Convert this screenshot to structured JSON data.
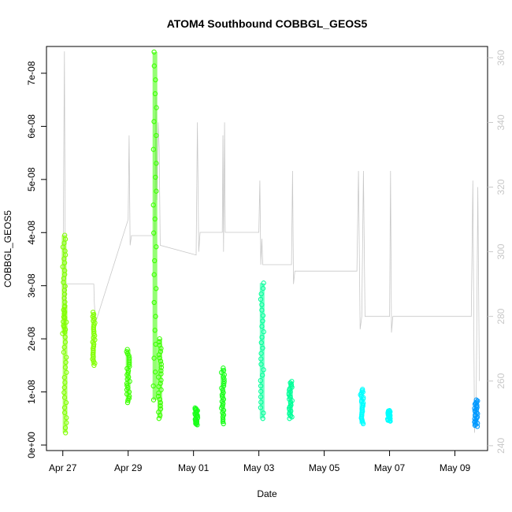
{
  "chart_data": {
    "type": "scatter",
    "title": "ATOM4 Southbound COBBGL_GEOS5",
    "xlabel": "Date",
    "ylabel": "COBBGL_GEOS5",
    "x_tick_labels": [
      "Apr 27",
      "Apr 29",
      "May 01",
      "May 03",
      "May 05",
      "May 07",
      "May 09"
    ],
    "x_tick_days": [
      0,
      2,
      4,
      6,
      8,
      10,
      12
    ],
    "xlim_days": [
      -0.5,
      13.0
    ],
    "ylim": [
      0,
      7.4e-08
    ],
    "y_ticks": [
      0,
      1e-08,
      2e-08,
      3e-08,
      4e-08,
      5e-08,
      6e-08,
      7e-08
    ],
    "y_tick_labels": [
      "0e+00",
      "1e-08",
      "2e-08",
      "3e-08",
      "4e-08",
      "5e-08",
      "6e-08",
      "7e-08"
    ],
    "y2_ticks": [
      240,
      260,
      280,
      300,
      320,
      340,
      360
    ],
    "y2_tick_labels": [
      "240",
      "260",
      "280",
      "300",
      "320",
      "340",
      "360"
    ],
    "y2lim": [
      238.5,
      363.5
    ],
    "y2_color": "#c8c8c8",
    "grid": false,
    "series": [
      {
        "color": "#80ff00",
        "clusters": [
          {
            "day": 0.04,
            "min": 2.1e-08,
            "max": 3.95e-08
          },
          {
            "day": 0.07,
            "min": 2.3e-09,
            "max": 2.6e-08
          },
          {
            "day": 0.94,
            "min": 1.5e-08,
            "max": 2.5e-08
          }
        ]
      },
      {
        "color": "#3cff00",
        "clusters": [
          {
            "day": 2.0,
            "min": 8e-09,
            "max": 1.8e-08
          },
          {
            "day": 2.82,
            "min": 8.5e-09,
            "max": 7.4e-08
          },
          {
            "day": 2.97,
            "min": 5e-09,
            "max": 2e-08
          }
        ]
      },
      {
        "color": "#1aff1a",
        "clusters": [
          {
            "day": 4.08,
            "min": 3.8e-09,
            "max": 7e-09
          },
          {
            "day": 4.9,
            "min": 4e-09,
            "max": 1.45e-08
          }
        ]
      },
      {
        "color": "#00ff99",
        "clusters": [
          {
            "day": 6.1,
            "min": 5e-09,
            "max": 3.05e-08
          },
          {
            "day": 6.97,
            "min": 5e-09,
            "max": 1.2e-08
          }
        ]
      },
      {
        "color": "#00ffff",
        "clusters": [
          {
            "day": 9.15,
            "min": 4e-09,
            "max": 1.05e-08
          },
          {
            "day": 9.98,
            "min": 4.5e-09,
            "max": 6.5e-09
          }
        ]
      },
      {
        "color": "#0099ff",
        "clusters": [
          {
            "day": 12.65,
            "min": 3.5e-09,
            "max": 8.5e-09
          }
        ]
      }
    ],
    "secondary_line": {
      "color": "#c8c8c8",
      "points": [
        [
          0.0,
          280
        ],
        [
          0.05,
          362
        ],
        [
          0.08,
          277
        ],
        [
          0.1,
          290
        ],
        [
          0.95,
          290
        ],
        [
          0.96,
          285
        ],
        [
          1.0,
          278
        ],
        [
          2.0,
          310
        ],
        [
          2.03,
          336
        ],
        [
          2.06,
          302
        ],
        [
          2.1,
          305
        ],
        [
          2.82,
          305
        ],
        [
          2.85,
          348
        ],
        [
          2.88,
          316
        ],
        [
          2.92,
          340
        ],
        [
          2.95,
          332
        ],
        [
          2.98,
          302
        ],
        [
          4.08,
          299
        ],
        [
          4.12,
          340
        ],
        [
          4.16,
          300
        ],
        [
          4.2,
          306
        ],
        [
          4.88,
          306
        ],
        [
          4.9,
          336
        ],
        [
          4.92,
          300
        ],
        [
          4.95,
          340
        ],
        [
          4.97,
          306
        ],
        [
          6.0,
          306
        ],
        [
          6.03,
          322
        ],
        [
          6.06,
          296
        ],
        [
          6.09,
          304
        ],
        [
          6.12,
          296
        ],
        [
          7.0,
          296
        ],
        [
          7.03,
          325
        ],
        [
          7.06,
          290
        ],
        [
          7.1,
          294
        ],
        [
          9.0,
          294
        ],
        [
          9.05,
          325
        ],
        [
          9.1,
          276
        ],
        [
          9.15,
          280
        ],
        [
          9.2,
          325
        ],
        [
          9.25,
          280
        ],
        [
          10.0,
          280
        ],
        [
          10.03,
          325
        ],
        [
          10.06,
          275
        ],
        [
          10.1,
          280
        ],
        [
          12.5,
          280
        ],
        [
          12.55,
          322
        ],
        [
          12.6,
          244
        ],
        [
          12.65,
          252
        ],
        [
          12.7,
          320
        ],
        [
          12.75,
          260
        ]
      ]
    }
  }
}
